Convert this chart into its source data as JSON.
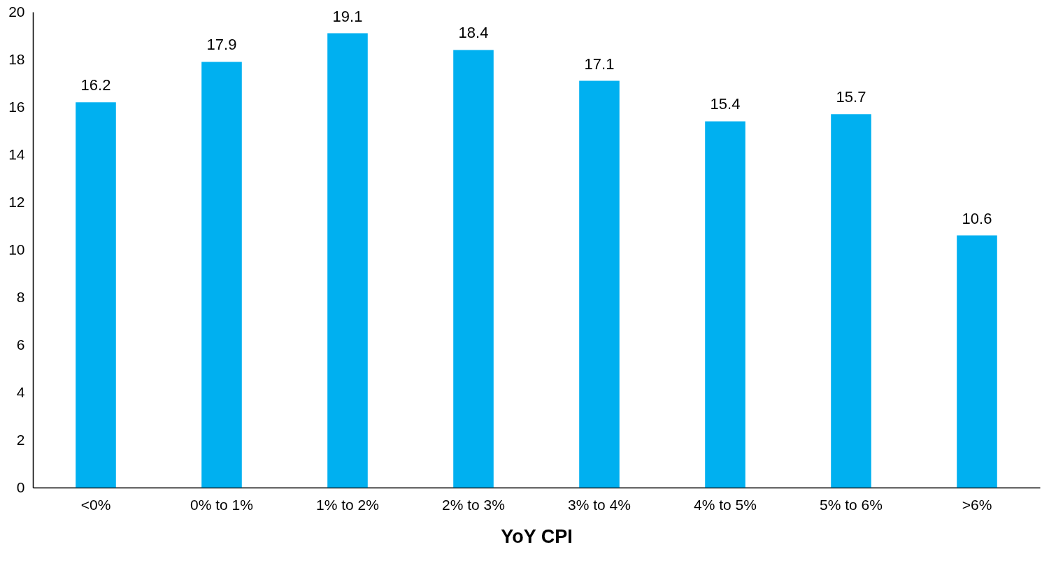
{
  "chart_data": {
    "type": "bar",
    "xlabel": "YoY CPI",
    "categories": [
      "<0%",
      "0% to 1%",
      "1% to 2%",
      "2% to 3%",
      "3% to 4%",
      "4% to 5%",
      "5% to 6%",
      ">6%"
    ],
    "values": [
      16.2,
      17.9,
      19.1,
      18.4,
      17.1,
      15.4,
      15.7,
      10.6
    ],
    "color": "#00b0f0",
    "ylim": [
      0,
      20
    ],
    "yticks": [
      0,
      2,
      4,
      6,
      8,
      10,
      12,
      14,
      16,
      18,
      20
    ],
    "grid": false,
    "data_labels": true
  }
}
